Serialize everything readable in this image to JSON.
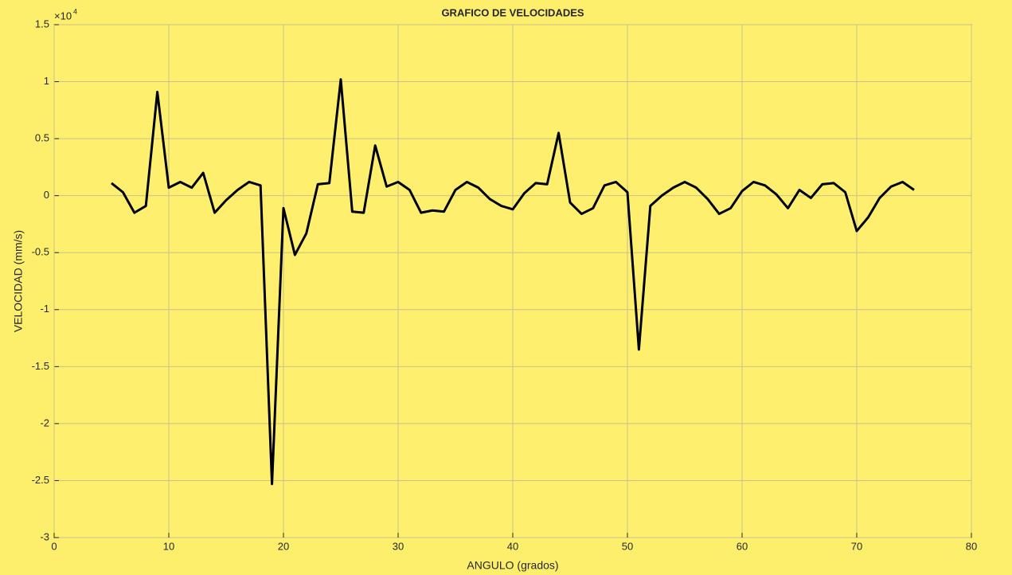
{
  "chart_data": {
    "type": "line",
    "title": "GRAFICO DE VELOCIDADES",
    "xlabel": "ANGULO (grados)",
    "ylabel": "VELOCIDAD (mm/s)",
    "y_multiplier": "×10",
    "y_multiplier_exponent": "4",
    "x": [
      5,
      6,
      7,
      8,
      9,
      10,
      11,
      12,
      13,
      14,
      15,
      16,
      17,
      18,
      19,
      20,
      21,
      22,
      23,
      24,
      25,
      26,
      27,
      28,
      29,
      30,
      31,
      32,
      33,
      34,
      35,
      36,
      37,
      38,
      39,
      40,
      41,
      42,
      43,
      44,
      45,
      46,
      47,
      48,
      49,
      50,
      51,
      52,
      53,
      54,
      55,
      56,
      57,
      58,
      59,
      60,
      61,
      62,
      63,
      64,
      65,
      66,
      67,
      68,
      69,
      70,
      71,
      72,
      73,
      74,
      75
    ],
    "series": [
      {
        "color": "#000000",
        "values": [
          0.11,
          0.03,
          -0.15,
          -0.09,
          0.91,
          0.07,
          0.12,
          0.07,
          0.2,
          -0.15,
          -0.04,
          0.05,
          0.12,
          0.09,
          -2.53,
          -0.11,
          -0.52,
          -0.33,
          0.1,
          0.11,
          1.02,
          -0.14,
          -0.15,
          0.44,
          0.08,
          0.12,
          0.05,
          -0.15,
          -0.13,
          -0.14,
          0.05,
          0.12,
          0.07,
          -0.03,
          -0.09,
          -0.12,
          0.02,
          0.11,
          0.1,
          0.55,
          -0.06,
          -0.16,
          -0.11,
          0.09,
          0.12,
          0.03,
          -1.35,
          -0.09,
          0,
          0.07,
          0.12,
          0.07,
          -0.03,
          -0.16,
          -0.11,
          0.04,
          0.12,
          0.09,
          0.01,
          -0.11,
          0.05,
          -0.02,
          0.1,
          0.11,
          0.03,
          -0.31,
          -0.19,
          -0.02,
          0.08,
          0.12,
          0.05
        ]
      }
    ],
    "xlim": [
      0,
      80
    ],
    "xticks": [
      0,
      10,
      20,
      30,
      40,
      50,
      60,
      70,
      80
    ],
    "ylim": [
      -3,
      1.5
    ],
    "yticks": [
      -3,
      -2.5,
      -2,
      -1.5,
      -1,
      -0.5,
      0,
      0.5,
      1,
      1.5
    ],
    "grid": true
  }
}
